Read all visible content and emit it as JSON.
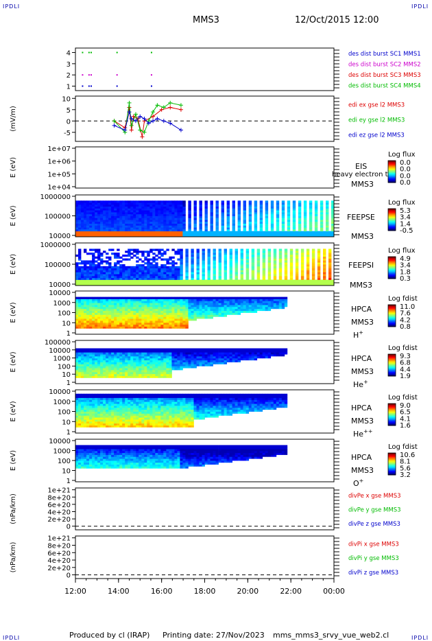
{
  "header": {
    "corner_label": "IPDLI",
    "spacecraft": "MMS3",
    "datetime": "12/Oct/2015 12:00"
  },
  "footer": {
    "produced_by": "Produced by cl (IRAP)",
    "printing_date": "Printing date: 27/Nov/2023",
    "filename": "mms_mms3_srvy_vue_web2.cl"
  },
  "chart_data": {
    "type": "multi-panel",
    "time_axis": {
      "ticks": [
        "12:00",
        "14:00",
        "16:00",
        "18:00",
        "20:00",
        "22:00",
        "00:00"
      ],
      "start_hour": 12,
      "end_hour": 24
    },
    "panels": [
      {
        "id": "des-burst",
        "type": "scatter",
        "yticks": [
          "1",
          "2",
          "3",
          "4"
        ],
        "ylim": [
          0.6,
          4.4
        ],
        "labels": [
          {
            "text": "des dist burst SC1 MMS1",
            "color": "#0000cc"
          },
          {
            "text": "des dist burst SC2 MMS2",
            "color": "#cc00cc"
          },
          {
            "text": "des dist burst SC3 MMS3",
            "color": "#dd0000"
          },
          {
            "text": "des dist burst SC4 MMS4",
            "color": "#00bb00"
          }
        ]
      },
      {
        "id": "edi",
        "type": "line",
        "ylabel": "(mV/m)",
        "yticks": [
          "-5",
          "0",
          "5",
          "10"
        ],
        "ylim": [
          -9,
          11
        ],
        "labels": [
          {
            "text": "edi ex gse l2 MMS3",
            "color": "#dd0000"
          },
          {
            "text": "edi ey gse l2 MMS3",
            "color": "#00bb00"
          },
          {
            "text": "edi ez gse l2 MMS3",
            "color": "#0000cc"
          }
        ]
      },
      {
        "id": "eis",
        "type": "heatmap",
        "ylabel": "E (eV)",
        "yticks": [
          "1e+04",
          "1e+05",
          "1e+06",
          "1e+07"
        ],
        "instrument": "EIS",
        "spacecraft": "MMS3",
        "species": "heavy electron to",
        "colorbar_title": "Log flux",
        "colorbar_ticks": [
          "0.0",
          "0.0",
          "0.0",
          "0.0"
        ]
      },
      {
        "id": "feepse",
        "type": "heatmap",
        "ylabel": "E (eV)",
        "yticks": [
          "10000",
          "100000",
          "1000000"
        ],
        "instrument": "FEEPSE",
        "spacecraft": "MMS3",
        "species": "",
        "colorbar_title": "Log flux",
        "colorbar_ticks": [
          "5.3",
          "3.4",
          "1.4",
          "-0.5"
        ]
      },
      {
        "id": "feepsi",
        "type": "heatmap",
        "ylabel": "E (eV)",
        "yticks": [
          "10000",
          "100000",
          "1000000"
        ],
        "instrument": "FEEPSI",
        "spacecraft": "MMS3",
        "species": "",
        "colorbar_title": "Log flux",
        "colorbar_ticks": [
          "4.9",
          "3.4",
          "1.8",
          "0.3"
        ]
      },
      {
        "id": "hpca-h",
        "type": "heatmap",
        "ylabel": "E (eV)",
        "yticks": [
          "1",
          "10",
          "100",
          "1000",
          "10000"
        ],
        "instrument": "HPCA",
        "spacecraft": "MMS3",
        "species": "H",
        "species_sup": "+",
        "colorbar_title": "Log fdist",
        "colorbar_ticks": [
          "11.0",
          "7.6",
          "4.2",
          "0.8"
        ]
      },
      {
        "id": "hpca-he1",
        "type": "heatmap",
        "ylabel": "E (eV)",
        "yticks": [
          "1",
          "10",
          "100",
          "1000",
          "10000",
          "100000"
        ],
        "instrument": "HPCA",
        "spacecraft": "MMS3",
        "species": "He",
        "species_sup": "+",
        "colorbar_title": "Log fdist",
        "colorbar_ticks": [
          "9.3",
          "6.8",
          "4.4",
          "1.9"
        ]
      },
      {
        "id": "hpca-he2",
        "type": "heatmap",
        "ylabel": "E (eV)",
        "yticks": [
          "1",
          "10",
          "100",
          "1000",
          "10000"
        ],
        "instrument": "HPCA",
        "spacecraft": "MMS3",
        "species": "He",
        "species_sup": "++",
        "colorbar_title": "Log fdist",
        "colorbar_ticks": [
          "9.0",
          "6.5",
          "4.1",
          "1.6"
        ]
      },
      {
        "id": "hpca-o",
        "type": "heatmap",
        "ylabel": "E (eV)",
        "yticks": [
          "1",
          "10",
          "100",
          "1000",
          "10000"
        ],
        "instrument": "HPCA",
        "spacecraft": "MMS3",
        "species": "O",
        "species_sup": "+",
        "colorbar_title": "Log fdist",
        "colorbar_ticks": [
          "10.6",
          "8.1",
          "5.6",
          "3.2"
        ]
      },
      {
        "id": "divpe",
        "type": "line",
        "ylabel": "(nPa/km)",
        "yticks": [
          "0",
          "2e+20",
          "4e+20",
          "6e+20",
          "8e+20",
          "1e+21"
        ],
        "ylim": [
          -0.1,
          1.05
        ],
        "labels": [
          {
            "text": "divPe x gse MMS3",
            "color": "#dd0000"
          },
          {
            "text": "divPe y gse MMS3",
            "color": "#00bb00"
          },
          {
            "text": "divPe z gse MMS3",
            "color": "#0000cc"
          }
        ]
      },
      {
        "id": "divpi",
        "type": "line",
        "ylabel": "(nPa/km)",
        "yticks": [
          "0",
          "2e+20",
          "4e+20",
          "6e+20",
          "8e+20",
          "1e+21"
        ],
        "ylim": [
          -0.1,
          1.05
        ],
        "labels": [
          {
            "text": "divPi x gse MMS3",
            "color": "#dd0000"
          },
          {
            "text": "divPi y gse MMS3",
            "color": "#00bb00"
          },
          {
            "text": "divPi z gse MMS3",
            "color": "#0000cc"
          }
        ]
      }
    ],
    "burst_marks": [
      {
        "sc": 4,
        "hours": [
          12.3,
          12.6,
          12.7,
          13.9,
          15.5
        ]
      },
      {
        "sc": 2,
        "hours": [
          12.3,
          12.6,
          12.7,
          13.9,
          15.5
        ]
      },
      {
        "sc": 1,
        "hours": [
          12.3,
          12.6,
          12.7,
          13.9,
          15.5
        ]
      }
    ],
    "edi_series": [
      {
        "name": "edi ex gse l2 MMS3",
        "color": "#dd0000",
        "x": [
          13.8,
          14.3,
          14.5,
          14.6,
          14.7,
          14.9,
          15.1,
          15.2,
          15.6,
          16.0,
          16.4,
          16.9
        ],
        "y": [
          0,
          -3,
          6,
          -4,
          2,
          1,
          -7,
          0,
          2,
          5,
          6,
          5
        ]
      },
      {
        "name": "edi ey gse l2 MMS3",
        "color": "#00bb00",
        "x": [
          13.8,
          14.3,
          14.5,
          14.6,
          14.8,
          15.0,
          15.2,
          15.4,
          15.6,
          15.8,
          16.1,
          16.4,
          16.9
        ],
        "y": [
          0,
          -5,
          8,
          -2,
          3,
          -4,
          -5,
          0,
          4,
          7,
          6,
          8,
          7
        ]
      },
      {
        "name": "edi ez gse l2 MMS3",
        "color": "#0000cc",
        "x": [
          13.8,
          14.3,
          14.5,
          14.6,
          14.8,
          15.0,
          15.2,
          15.4,
          15.6,
          15.8,
          16.1,
          16.4,
          16.9
        ],
        "y": [
          -2,
          -4,
          4,
          1,
          0,
          2,
          1,
          -1,
          0,
          1,
          0,
          -1,
          -4
        ]
      }
    ]
  }
}
